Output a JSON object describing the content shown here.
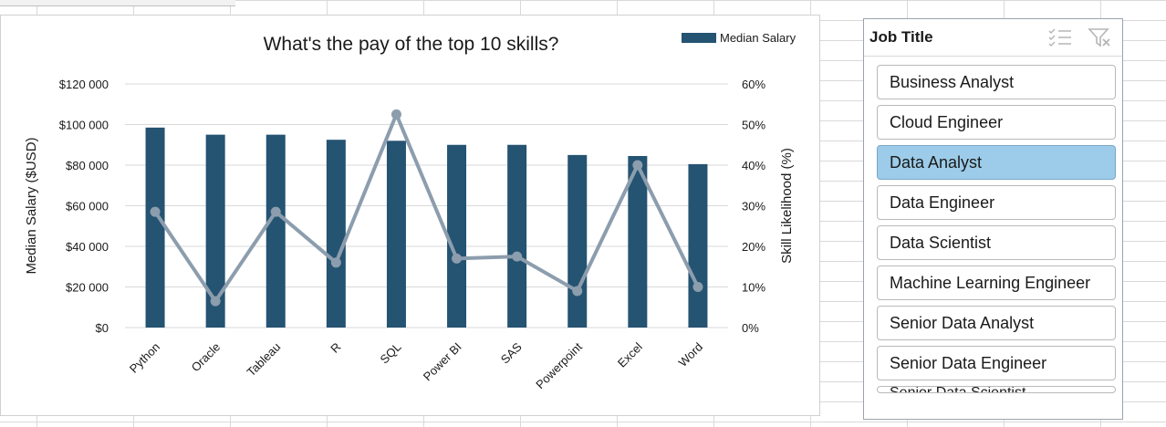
{
  "chart": {
    "title": "What's the pay of the top 10 skills?",
    "legend_label": "Median Salary",
    "colors": {
      "bar": "#255372",
      "line": "#8c9dad",
      "grid": "#d9d9d9"
    }
  },
  "chart_data": {
    "type": "bar",
    "title": "What's the pay of the top 10 skills?",
    "categories": [
      "Python",
      "Oracle",
      "Tableau",
      "R",
      "SQL",
      "Power BI",
      "SAS",
      "Powerpoint",
      "Excel",
      "Word"
    ],
    "series": [
      {
        "name": "Median Salary",
        "type": "bar",
        "axis": "left",
        "values": [
          98500,
          95000,
          95000,
          92500,
          92000,
          90000,
          90000,
          85000,
          84500,
          80500
        ]
      },
      {
        "type": "line",
        "axis": "right",
        "values": [
          28.5,
          6.5,
          28.5,
          16,
          52.5,
          17,
          17.5,
          9,
          40,
          10
        ]
      }
    ],
    "ylabel": "Median Salary ($USD)",
    "y2label": "Skill Likelihood (%)",
    "ylim": [
      0,
      120000
    ],
    "y2lim": [
      0,
      60
    ],
    "yticks": [
      "$120 000",
      "$100 000",
      "$80 000",
      "$60 000",
      "$40 000",
      "$20 000",
      "$0"
    ],
    "y2ticks": [
      "60%",
      "50%",
      "40%",
      "30%",
      "20%",
      "10%",
      "0%"
    ],
    "legend": "top-right",
    "grid": true
  },
  "slicer": {
    "title": "Job Title",
    "icons": [
      "multi-select-icon",
      "clear-filter-icon"
    ],
    "items": [
      {
        "label": "Business Analyst",
        "selected": false
      },
      {
        "label": "Cloud Engineer",
        "selected": false
      },
      {
        "label": "Data Analyst",
        "selected": true
      },
      {
        "label": "Data Engineer",
        "selected": false
      },
      {
        "label": "Data Scientist",
        "selected": false
      },
      {
        "label": "Machine Learning Engineer",
        "selected": false
      },
      {
        "label": "Senior Data Analyst",
        "selected": false
      },
      {
        "label": "Senior Data Engineer",
        "selected": false
      },
      {
        "label": "Senior Data Scientist",
        "selected": false
      }
    ]
  }
}
